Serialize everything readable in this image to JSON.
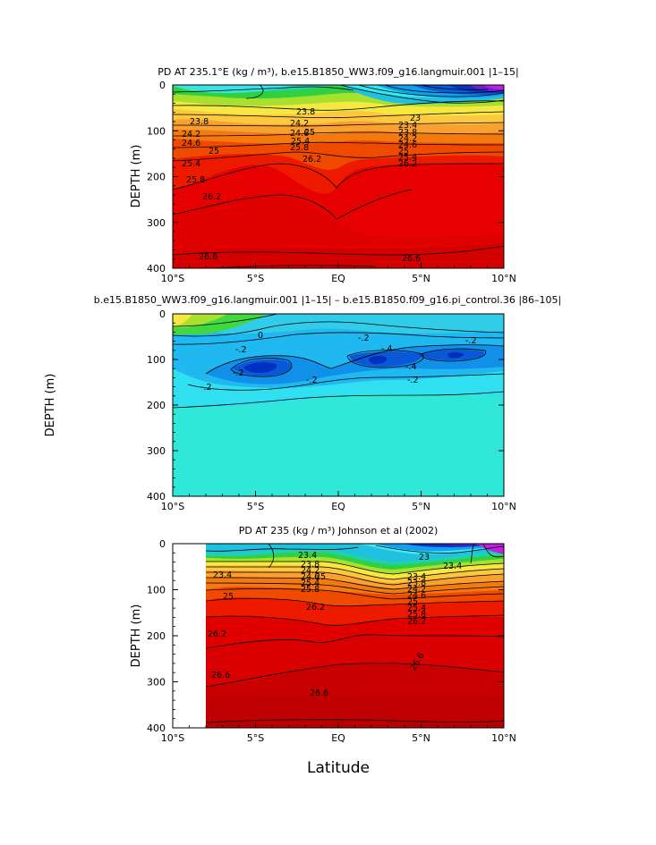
{
  "chart_data": [
    {
      "type": "contour",
      "title": "PD AT 235.1°E (kg / m³), b.e15.B1850_WW3.f09_g16.langmuir.001  |1–15|",
      "ylabel": "DEPTH (m)",
      "xlabel": "",
      "x_ticks": [
        "10°S",
        "5°S",
        "EQ",
        "5°N",
        "10°N"
      ],
      "x_range": [
        -10,
        10
      ],
      "y_ticks": [
        "0",
        "100",
        "200",
        "300",
        "400"
      ],
      "y_range": [
        0,
        400
      ],
      "contour_labels": [
        "23.8",
        "24.2",
        "24.6",
        "25",
        "25.4",
        "25.8",
        "26.2",
        "26.6",
        "23.8",
        "24.2",
        "24.6",
        "25",
        "25.4",
        "25.8",
        "26.2",
        "26.6",
        "23",
        "23.4",
        "23.8",
        "24.2",
        "24.6",
        "25",
        "25.4",
        "26.2"
      ]
    },
    {
      "type": "contour",
      "title": "b.e15.B1850_WW3.f09_g16.langmuir.001  |1–15| – b.e15.B1850.f09_g16.pi_control.36  |86–105|",
      "ylabel": "DEPTH (m)",
      "xlabel": "",
      "x_ticks": [
        "10°S",
        "5°S",
        "EQ",
        "5°N",
        "10°N"
      ],
      "x_range": [
        -10,
        10
      ],
      "y_ticks": [
        "0",
        "100",
        "200",
        "300",
        "400"
      ],
      "y_range": [
        0,
        400
      ],
      "contour_labels": [
        "0",
        "-.2",
        "-.2",
        "-.2",
        "-.4",
        "-.2",
        "-.2",
        "-.2",
        "-.2",
        "-.4"
      ]
    },
    {
      "type": "contour",
      "title": "PD AT 235 (kg / m³) Johnson et al (2002)",
      "ylabel": "DEPTH (m)",
      "xlabel": "Latitude",
      "x_ticks": [
        "10°S",
        "5°S",
        "EQ",
        "5°N",
        "10°N"
      ],
      "x_range": [
        -10,
        10
      ],
      "y_ticks": [
        "0",
        "100",
        "200",
        "300",
        "400"
      ],
      "y_range": [
        0,
        400
      ],
      "data_x_range": [
        -8,
        10
      ],
      "contour_labels": [
        "23.4",
        "25",
        "26.2",
        "26.6",
        "23.4",
        "23.8",
        "24.2",
        "24.6",
        "25",
        "25.4",
        "25.8",
        "26.2",
        "26.6",
        "26.6",
        "23",
        "23.4",
        "23.8",
        "24.2",
        "24.6",
        "25",
        "25.4",
        "25.8",
        "26.2",
        "23.4"
      ]
    }
  ]
}
